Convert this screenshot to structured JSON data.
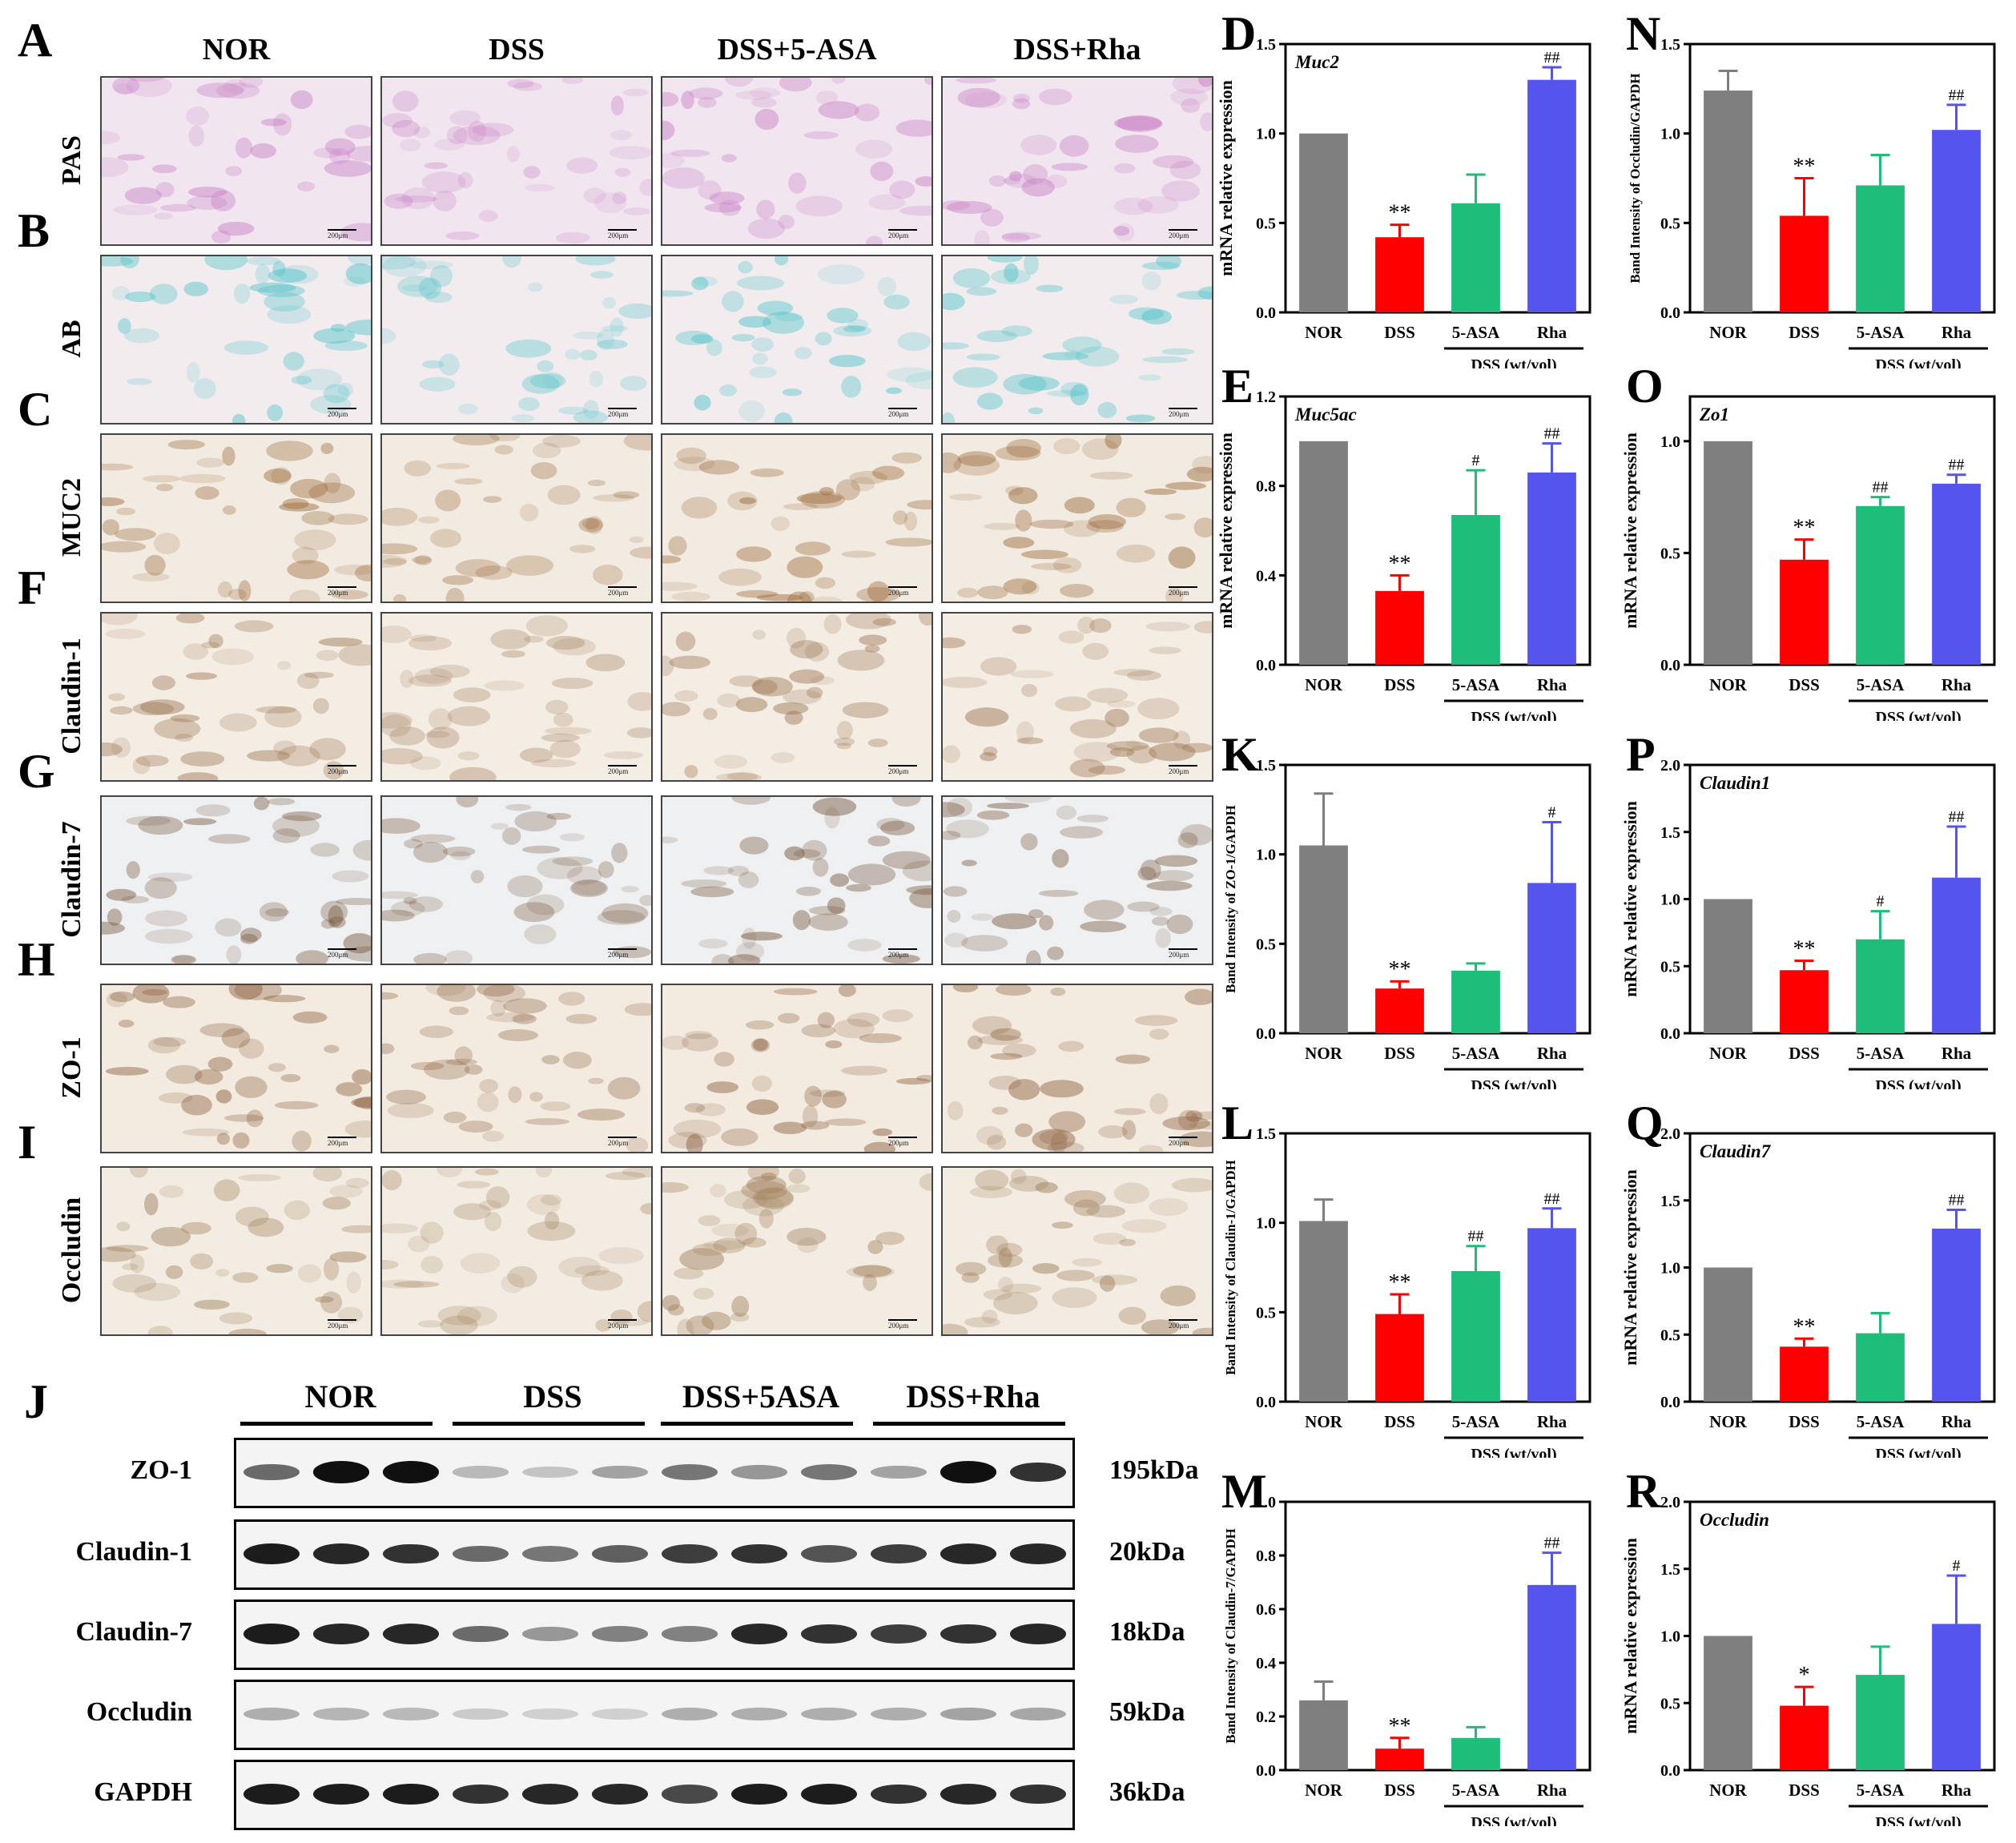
{
  "histology": {
    "columns": [
      "NOR",
      "DSS",
      "DSS+5-ASA",
      "DSS+Rha"
    ],
    "rows": [
      {
        "letter": "A",
        "label": "PAS",
        "tint": "#c880c4",
        "bg": "#f1e6f0"
      },
      {
        "letter": "B",
        "label": "AB",
        "tint": "#52c4c8",
        "bg": "#f2ecef"
      },
      {
        "letter": "C",
        "label": "MUC2",
        "tint": "#9b6a3c",
        "bg": "#f2ebe1"
      },
      {
        "letter": "F",
        "label": "Claudin-1",
        "tint": "#a07a58",
        "bg": "#f4ede4"
      },
      {
        "letter": "G",
        "label": "Claudin-7",
        "tint": "#7a5a40",
        "bg": "#eef0f2"
      },
      {
        "letter": "H",
        "label": "ZO-1",
        "tint": "#8a5e3c",
        "bg": "#f3ebe0"
      },
      {
        "letter": "I",
        "label": "Occludin",
        "tint": "#a0805c",
        "bg": "#f3ece2"
      }
    ],
    "scale_bar": "200μm"
  },
  "western_blot": {
    "letter": "J",
    "groups": [
      "NOR",
      "DSS",
      "DSS+5ASA",
      "DSS+Rha"
    ],
    "bands": [
      {
        "label": "ZO-1",
        "kda": "195kDa",
        "intensities": [
          0.55,
          0.95,
          0.95,
          0.2,
          0.15,
          0.3,
          0.5,
          0.35,
          0.5,
          0.3,
          0.95,
          0.8
        ]
      },
      {
        "label": "Claudin-1",
        "kda": "20kDa",
        "intensities": [
          0.9,
          0.85,
          0.8,
          0.55,
          0.5,
          0.6,
          0.75,
          0.8,
          0.65,
          0.75,
          0.85,
          0.85
        ]
      },
      {
        "label": "Claudin-7",
        "kda": "18kDa",
        "intensities": [
          0.9,
          0.85,
          0.85,
          0.55,
          0.35,
          0.45,
          0.45,
          0.85,
          0.8,
          0.75,
          0.8,
          0.85
        ]
      },
      {
        "label": "Occludin",
        "kda": "59kDa",
        "intensities": [
          0.25,
          0.22,
          0.2,
          0.12,
          0.1,
          0.1,
          0.25,
          0.25,
          0.25,
          0.25,
          0.3,
          0.28
        ]
      },
      {
        "label": "GAPDH",
        "kda": "36kDa",
        "intensities": [
          0.9,
          0.9,
          0.9,
          0.8,
          0.85,
          0.85,
          0.7,
          0.9,
          0.9,
          0.8,
          0.85,
          0.8
        ]
      }
    ]
  },
  "chart_data": [
    {
      "panel": "D",
      "type": "bar",
      "italic_title": "Muc2",
      "ylabel": "mRNA relative expression",
      "categories": [
        "NOR",
        "DSS",
        "5-ASA",
        "Rha"
      ],
      "bracket_label": "DSS (wt/vol)",
      "values": [
        1.0,
        0.42,
        0.61,
        1.3
      ],
      "errors": [
        0,
        0.07,
        0.16,
        0.07
      ],
      "marks": [
        "",
        "**",
        "",
        "##"
      ],
      "ylim": [
        0,
        1.5
      ],
      "ticks": [
        "0.0",
        "0.5",
        "1.0",
        "1.5"
      ]
    },
    {
      "panel": "N",
      "type": "bar",
      "italic_title": "",
      "ylabel": "Band Intensity of Occludin/GAPDH",
      "categories": [
        "NOR",
        "DSS",
        "5-ASA",
        "Rha"
      ],
      "bracket_label": "DSS (wt/vol)",
      "values": [
        1.24,
        0.54,
        0.71,
        1.02
      ],
      "errors": [
        0.11,
        0.21,
        0.17,
        0.14
      ],
      "marks": [
        "",
        "**",
        "",
        "##"
      ],
      "ylim": [
        0,
        1.5
      ],
      "ticks": [
        "0.0",
        "0.5",
        "1.0",
        "1.5"
      ]
    },
    {
      "panel": "E",
      "type": "bar",
      "italic_title": "Muc5ac",
      "ylabel": "mRNA relative expression",
      "categories": [
        "NOR",
        "DSS",
        "5-ASA",
        "Rha"
      ],
      "bracket_label": "DSS (wt/vol)",
      "values": [
        1.0,
        0.33,
        0.67,
        0.86
      ],
      "errors": [
        0,
        0.07,
        0.2,
        0.13
      ],
      "marks": [
        "",
        "**",
        "#",
        "##"
      ],
      "ylim": [
        0,
        1.2
      ],
      "ticks": [
        "0.0",
        "0.4",
        "0.8",
        "1.2"
      ]
    },
    {
      "panel": "O",
      "type": "bar",
      "italic_title": "Zo1",
      "ylabel": "mRNA relative expression",
      "categories": [
        "NOR",
        "DSS",
        "5-ASA",
        "Rha"
      ],
      "bracket_label": "DSS (wt/vol)",
      "values": [
        1.0,
        0.47,
        0.71,
        0.81
      ],
      "errors": [
        0,
        0.09,
        0.04,
        0.04
      ],
      "marks": [
        "",
        "**",
        "##",
        "##"
      ],
      "ylim": [
        0,
        1.2
      ],
      "ticks": [
        "0.0",
        "0.5",
        "1.0"
      ]
    },
    {
      "panel": "K",
      "type": "bar",
      "italic_title": "",
      "ylabel": "Band Intensity of ZO-1/GAPDH",
      "categories": [
        "NOR",
        "DSS",
        "5-ASA",
        "Rha"
      ],
      "bracket_label": "DSS (wt/vol)",
      "values": [
        1.05,
        0.25,
        0.35,
        0.84
      ],
      "errors": [
        0.29,
        0.04,
        0.04,
        0.34
      ],
      "marks": [
        "",
        "**",
        "",
        "#"
      ],
      "ylim": [
        0,
        1.5
      ],
      "ticks": [
        "0.0",
        "0.5",
        "1.0",
        "1.5"
      ]
    },
    {
      "panel": "P",
      "type": "bar",
      "italic_title": "Claudin1",
      "ylabel": "mRNA relative expression",
      "categories": [
        "NOR",
        "DSS",
        "5-ASA",
        "Rha"
      ],
      "bracket_label": "DSS (wt/vol)",
      "values": [
        1.0,
        0.47,
        0.7,
        1.16
      ],
      "errors": [
        0,
        0.07,
        0.21,
        0.38
      ],
      "marks": [
        "",
        "**",
        "#",
        "##"
      ],
      "ylim": [
        0,
        2.0
      ],
      "ticks": [
        "0.0",
        "0.5",
        "1.0",
        "1.5",
        "2.0"
      ]
    },
    {
      "panel": "L",
      "type": "bar",
      "italic_title": "",
      "ylabel": "Band Intensity of Claudin-1/GAPDH",
      "categories": [
        "NOR",
        "DSS",
        "5-ASA",
        "Rha"
      ],
      "bracket_label": "DSS (wt/vol)",
      "values": [
        1.01,
        0.49,
        0.73,
        0.97
      ],
      "errors": [
        0.12,
        0.11,
        0.14,
        0.11
      ],
      "marks": [
        "",
        "**",
        "##",
        "##"
      ],
      "ylim": [
        0,
        1.5
      ],
      "ticks": [
        "0.0",
        "0.5",
        "1.0",
        "1.5"
      ]
    },
    {
      "panel": "Q",
      "type": "bar",
      "italic_title": "Claudin7",
      "ylabel": "mRNA relative expression",
      "categories": [
        "NOR",
        "DSS",
        "5-ASA",
        "Rha"
      ],
      "bracket_label": "DSS (wt/vol)",
      "values": [
        1.0,
        0.41,
        0.51,
        1.29
      ],
      "errors": [
        0,
        0.06,
        0.15,
        0.14
      ],
      "marks": [
        "",
        "**",
        "",
        "##"
      ],
      "ylim": [
        0,
        2.0
      ],
      "ticks": [
        "0.0",
        "0.5",
        "1.0",
        "1.5",
        "2.0"
      ]
    },
    {
      "panel": "M",
      "type": "bar",
      "italic_title": "",
      "ylabel": "Band Intensity of Claudin-7/GAPDH",
      "categories": [
        "NOR",
        "DSS",
        "5-ASA",
        "Rha"
      ],
      "bracket_label": "DSS (wt/vol)",
      "values": [
        0.26,
        0.08,
        0.12,
        0.69
      ],
      "errors": [
        0.07,
        0.04,
        0.04,
        0.12
      ],
      "marks": [
        "",
        "**",
        "",
        "##"
      ],
      "ylim": [
        0,
        1.0
      ],
      "ticks": [
        "0.0",
        "0.2",
        "0.4",
        "0.6",
        "0.8",
        "1.0"
      ]
    },
    {
      "panel": "R",
      "type": "bar",
      "italic_title": "Occludin",
      "ylabel": "mRNA relative expression",
      "categories": [
        "NOR",
        "DSS",
        "5-ASA",
        "Rha"
      ],
      "bracket_label": "DSS (wt/vol)",
      "values": [
        1.0,
        0.48,
        0.71,
        1.09
      ],
      "errors": [
        0,
        0.14,
        0.21,
        0.36
      ],
      "marks": [
        "",
        "*",
        "",
        "#"
      ],
      "ylim": [
        0,
        2.0
      ],
      "ticks": [
        "0.0",
        "0.5",
        "1.0",
        "1.5",
        "2.0"
      ]
    }
  ],
  "colors": {
    "NOR": "#7f7f7f",
    "DSS": "#ff0000",
    "5-ASA": "#1ebd7a",
    "Rha": "#5555ee"
  }
}
